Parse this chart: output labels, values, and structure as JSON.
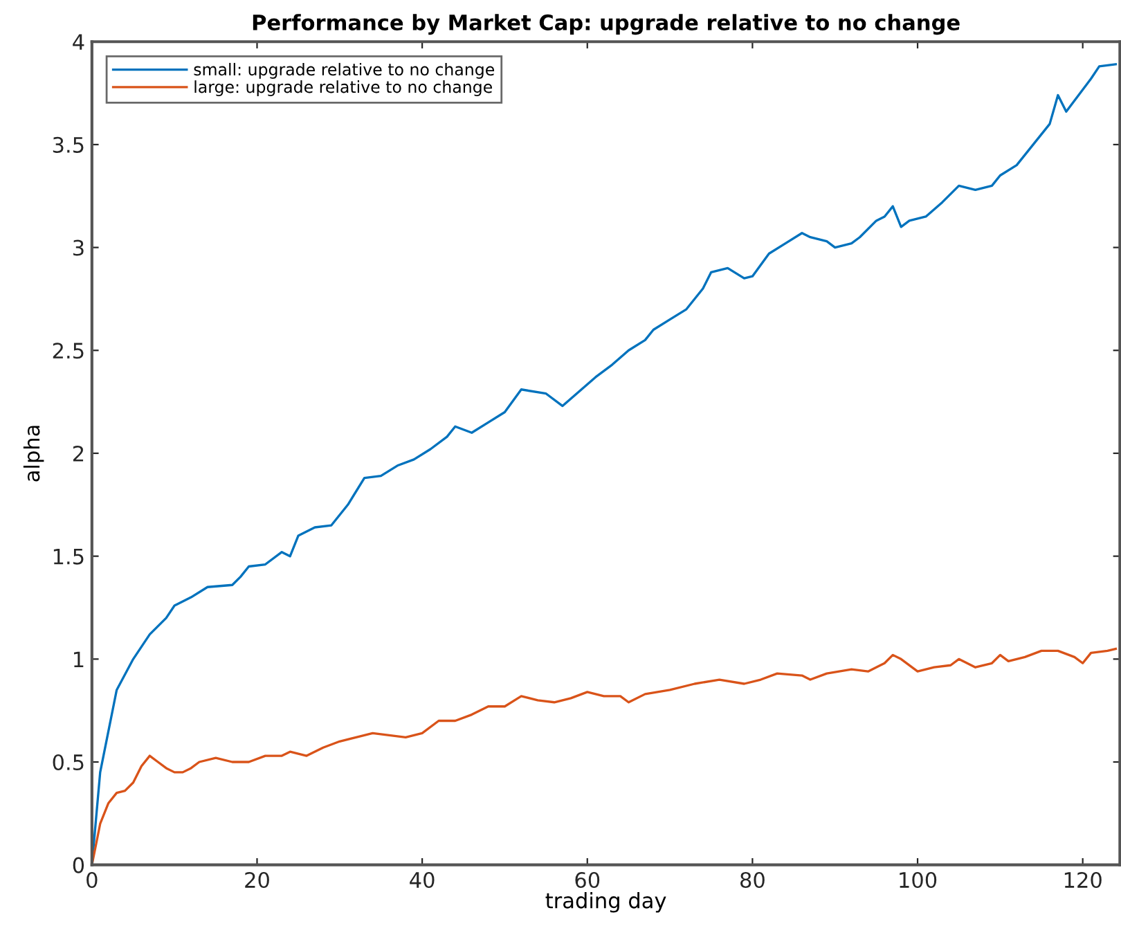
{
  "chart_data": {
    "type": "line",
    "title": "Performance by Market Cap: upgrade relative to no change",
    "xlabel": "trading day",
    "ylabel": "alpha",
    "xlim": [
      0,
      124.5
    ],
    "xticks": [
      0,
      20,
      40,
      60,
      80,
      100,
      120
    ],
    "ylim": [
      0,
      4
    ],
    "yticks": [
      0,
      0.5,
      1,
      1.5,
      2,
      2.5,
      3,
      3.5,
      4
    ],
    "grid": false,
    "legend": "top left",
    "line_style": "solid",
    "marker": "none",
    "series": [
      {
        "name": "small: upgrade relative to no change",
        "color": "#0072bd",
        "x": [
          0,
          1,
          2,
          3,
          5,
          7,
          9,
          10,
          12,
          14,
          17,
          18,
          19,
          21,
          23,
          24,
          25,
          27,
          29,
          31,
          33,
          35,
          37,
          39,
          41,
          43,
          44,
          46,
          48,
          50,
          52,
          55,
          57,
          59,
          61,
          63,
          65,
          67,
          68,
          70,
          72,
          74,
          75,
          77,
          79,
          80,
          82,
          84,
          86,
          87,
          89,
          90,
          92,
          93,
          95,
          96,
          97,
          98,
          99,
          101,
          103,
          105,
          107,
          109,
          110,
          112,
          114,
          116,
          117,
          118,
          121,
          122,
          124
        ],
        "values": [
          0,
          0.45,
          0.65,
          0.85,
          1.0,
          1.12,
          1.2,
          1.26,
          1.3,
          1.35,
          1.36,
          1.4,
          1.45,
          1.46,
          1.52,
          1.5,
          1.6,
          1.64,
          1.65,
          1.75,
          1.88,
          1.89,
          1.94,
          1.97,
          2.02,
          2.08,
          2.13,
          2.1,
          2.15,
          2.2,
          2.31,
          2.29,
          2.23,
          2.3,
          2.37,
          2.43,
          2.5,
          2.55,
          2.6,
          2.65,
          2.7,
          2.8,
          2.88,
          2.9,
          2.85,
          2.86,
          2.97,
          3.02,
          3.07,
          3.05,
          3.03,
          3.0,
          3.02,
          3.05,
          3.13,
          3.15,
          3.2,
          3.1,
          3.13,
          3.15,
          3.22,
          3.3,
          3.28,
          3.3,
          3.35,
          3.4,
          3.5,
          3.6,
          3.74,
          3.66,
          3.82,
          3.88,
          3.89
        ]
      },
      {
        "name": "large: upgrade relative to no change",
        "color": "#d95319",
        "x": [
          0,
          1,
          2,
          3,
          4,
          5,
          6,
          7,
          8,
          9,
          10,
          11,
          12,
          13,
          15,
          17,
          19,
          21,
          23,
          24,
          26,
          28,
          30,
          32,
          34,
          36,
          38,
          40,
          42,
          44,
          46,
          48,
          50,
          52,
          54,
          56,
          58,
          60,
          62,
          64,
          65,
          67,
          70,
          73,
          76,
          79,
          81,
          83,
          86,
          87,
          89,
          92,
          94,
          96,
          97,
          98,
          100,
          102,
          104,
          105,
          107,
          109,
          110,
          111,
          113,
          115,
          117,
          119,
          120,
          121,
          123,
          124
        ],
        "values": [
          0,
          0.2,
          0.3,
          0.35,
          0.36,
          0.4,
          0.48,
          0.53,
          0.5,
          0.47,
          0.45,
          0.45,
          0.47,
          0.5,
          0.52,
          0.5,
          0.5,
          0.53,
          0.53,
          0.55,
          0.53,
          0.57,
          0.6,
          0.62,
          0.64,
          0.63,
          0.62,
          0.64,
          0.7,
          0.7,
          0.73,
          0.77,
          0.77,
          0.82,
          0.8,
          0.79,
          0.81,
          0.84,
          0.82,
          0.82,
          0.79,
          0.83,
          0.85,
          0.88,
          0.9,
          0.88,
          0.9,
          0.93,
          0.92,
          0.9,
          0.93,
          0.95,
          0.94,
          0.98,
          1.02,
          1.0,
          0.94,
          0.96,
          0.97,
          1.0,
          0.96,
          0.98,
          1.02,
          0.99,
          1.01,
          1.04,
          1.04,
          1.01,
          0.98,
          1.03,
          1.04,
          1.05
        ]
      }
    ]
  }
}
